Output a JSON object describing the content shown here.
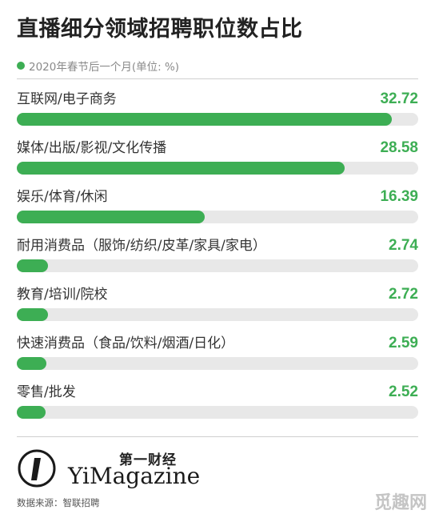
{
  "title": "直播细分领域招聘职位数占比",
  "legend": {
    "label": "2020年春节后一个月(单位: %)"
  },
  "colors": {
    "bar": "#3dae54",
    "track": "#e8e8e8",
    "value": "#3dae54"
  },
  "chart_data": {
    "type": "bar",
    "orientation": "horizontal",
    "title": "直播细分领域招聘职位数占比",
    "series": [
      {
        "name": "2020年春节后一个月(单位: %)",
        "values": [
          32.72,
          28.58,
          16.39,
          2.74,
          2.72,
          2.59,
          2.52
        ]
      }
    ],
    "categories": [
      "互联网/电子商务",
      "媒体/出版/影视/文化传播",
      "娱乐/体育/休闲",
      "耐用消费品（服饰/纺织/皮革/家具/家电）",
      "教育/培训/院校",
      "快速消费品（食品/饮料/烟酒/日化）",
      "零售/批发"
    ],
    "value_labels": [
      "32.72",
      "28.58",
      "16.39",
      "2.74",
      "2.72",
      "2.59",
      "2.52"
    ],
    "xlim": [
      0,
      35
    ],
    "unit": "%",
    "grid": false,
    "legend_position": "top-left"
  },
  "logo": {
    "cn": "第一财经",
    "en": "YiMagazine",
    "mark": "1"
  },
  "source": "数据来源：智联招聘",
  "watermark": "觅趣网"
}
